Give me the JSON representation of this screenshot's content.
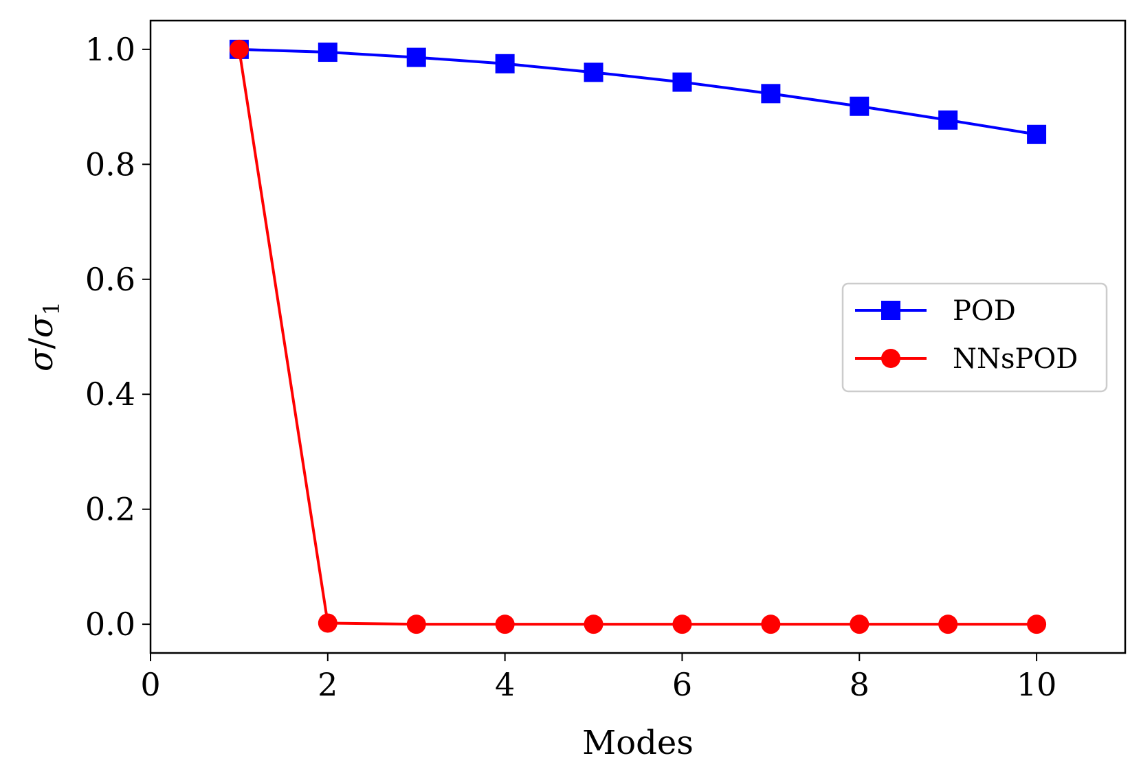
{
  "chart_data": {
    "type": "line",
    "title": "",
    "xlabel": "Modes",
    "ylabel": "σ/σ₁",
    "ylabel_parts": {
      "main": "σ",
      "slash": "/",
      "denom": "σ",
      "sub": "1"
    },
    "xlim": [
      0,
      11
    ],
    "ylim": [
      -0.05,
      1.05
    ],
    "xticks": [
      0,
      2,
      4,
      6,
      8,
      10
    ],
    "xtick_labels": [
      "0",
      "2",
      "4",
      "6",
      "8",
      "10"
    ],
    "yticks": [
      0.0,
      0.2,
      0.4,
      0.6,
      0.8,
      1.0
    ],
    "ytick_labels": [
      "0.0",
      "0.2",
      "0.4",
      "0.6",
      "0.8",
      "1.0"
    ],
    "grid": false,
    "legend_position": "center-right",
    "x": [
      1,
      2,
      3,
      4,
      5,
      6,
      7,
      8,
      9,
      10
    ],
    "series": [
      {
        "name": "POD",
        "color": "#0000ff",
        "marker": "square",
        "values": [
          1.0,
          0.995,
          0.986,
          0.975,
          0.96,
          0.943,
          0.923,
          0.901,
          0.877,
          0.852
        ]
      },
      {
        "name": "NNsPOD",
        "color": "#ff0000",
        "marker": "circle",
        "values": [
          1.0,
          0.002,
          0.0,
          0.0,
          0.0,
          0.0,
          0.0,
          0.0,
          0.0,
          0.0
        ]
      }
    ]
  }
}
